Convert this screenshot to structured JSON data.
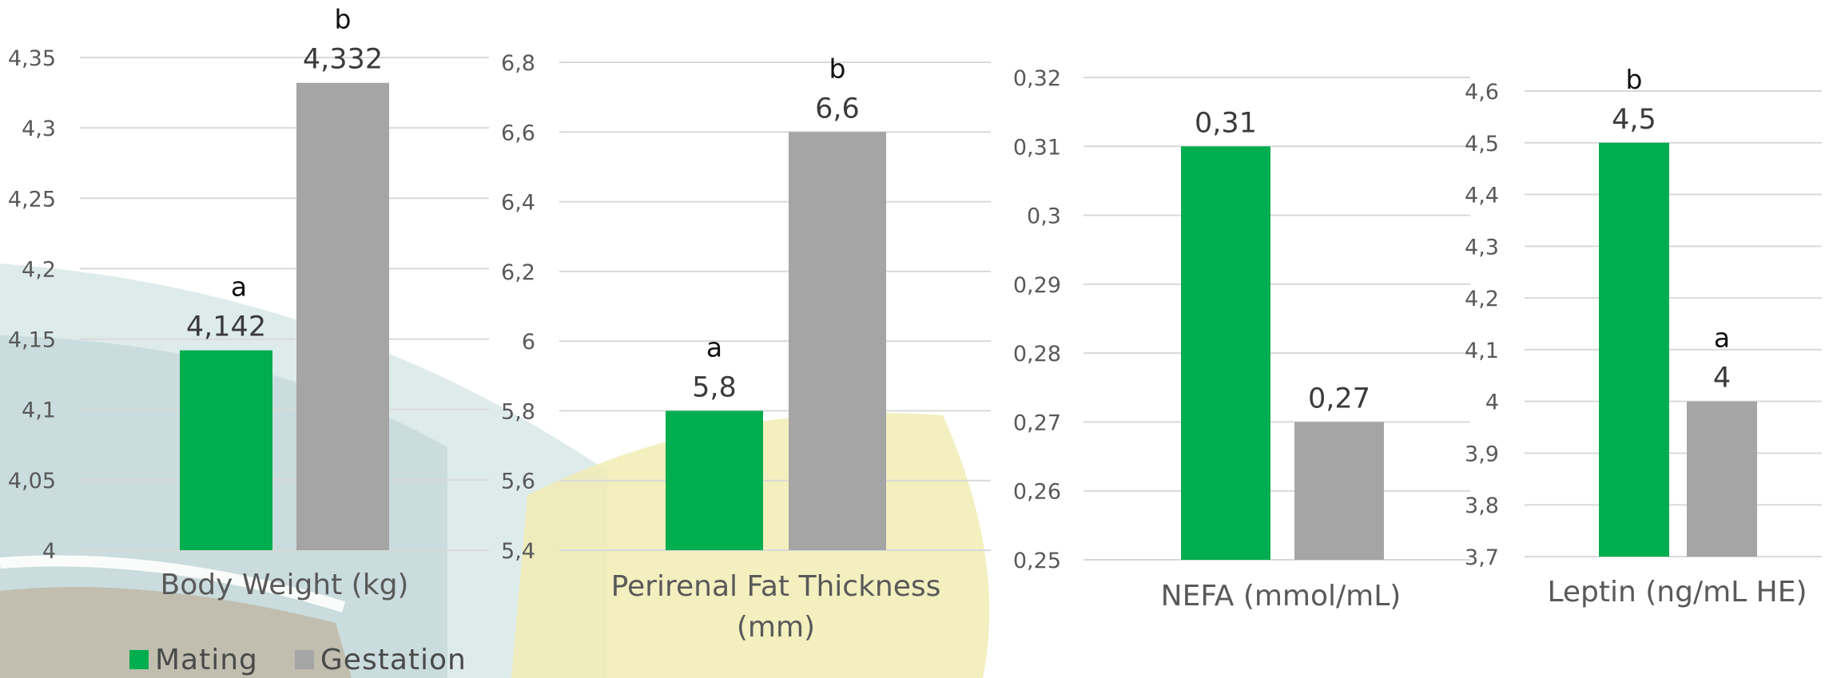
{
  "legend": {
    "mating_label": "Mating",
    "gestation_label": "Gestation"
  },
  "colors": {
    "mating": "#00ad4f",
    "gestation": "#a5a5a5",
    "grid": "#d9d9d9",
    "tick_text": "#595959"
  },
  "chart_data": [
    {
      "type": "bar",
      "xlabel": "Body Weight (kg)",
      "categories": [
        "Mating",
        "Gestation"
      ],
      "series": [
        {
          "name": "Body Weight (kg)",
          "values": [
            4.142,
            4.332
          ]
        }
      ],
      "value_labels": [
        "4,142",
        "4,332"
      ],
      "letters": [
        "a",
        "b"
      ],
      "ylim": [
        4,
        4.35
      ],
      "yticks": [
        "4",
        "4,05",
        "4,1",
        "4,15",
        "4,2",
        "4,25",
        "4,3",
        "4,35"
      ],
      "grid": true
    },
    {
      "type": "bar",
      "xlabel": "Perirenal Fat Thickness (mm)",
      "categories": [
        "Mating",
        "Gestation"
      ],
      "series": [
        {
          "name": "Perirenal Fat Thickness (mm)",
          "values": [
            5.8,
            6.6
          ]
        }
      ],
      "value_labels": [
        "5,8",
        "6,6"
      ],
      "letters": [
        "a",
        "b"
      ],
      "ylim": [
        5.4,
        6.8
      ],
      "yticks": [
        "5,4",
        "5,6",
        "5,8",
        "6",
        "6,2",
        "6,4",
        "6,6",
        "6,8"
      ],
      "grid": true
    },
    {
      "type": "bar",
      "xlabel": "NEFA (mmol/mL)",
      "categories": [
        "Mating",
        "Gestation"
      ],
      "series": [
        {
          "name": "NEFA (mmol/mL)",
          "values": [
            0.31,
            0.27
          ]
        }
      ],
      "value_labels": [
        "0,31",
        "0,27"
      ],
      "letters": [
        "",
        ""
      ],
      "ylim": [
        0.25,
        0.32
      ],
      "yticks": [
        "0,25",
        "0,26",
        "0,27",
        "0,28",
        "0,29",
        "0,3",
        "0,31",
        "0,32"
      ],
      "grid": true
    },
    {
      "type": "bar",
      "xlabel": "Leptin (ng/mL HE)",
      "categories": [
        "Mating",
        "Gestation"
      ],
      "series": [
        {
          "name": "Leptin (ng/mL HE)",
          "values": [
            4.5,
            4.0
          ]
        }
      ],
      "value_labels": [
        "4,5",
        "4"
      ],
      "letters": [
        "b",
        "a"
      ],
      "ylim": [
        3.7,
        4.6
      ],
      "yticks": [
        "3,7",
        "3,8",
        "3,9",
        "4",
        "4,1",
        "4,2",
        "4,3",
        "4,4",
        "4,5",
        "4,6"
      ],
      "grid": true
    }
  ]
}
